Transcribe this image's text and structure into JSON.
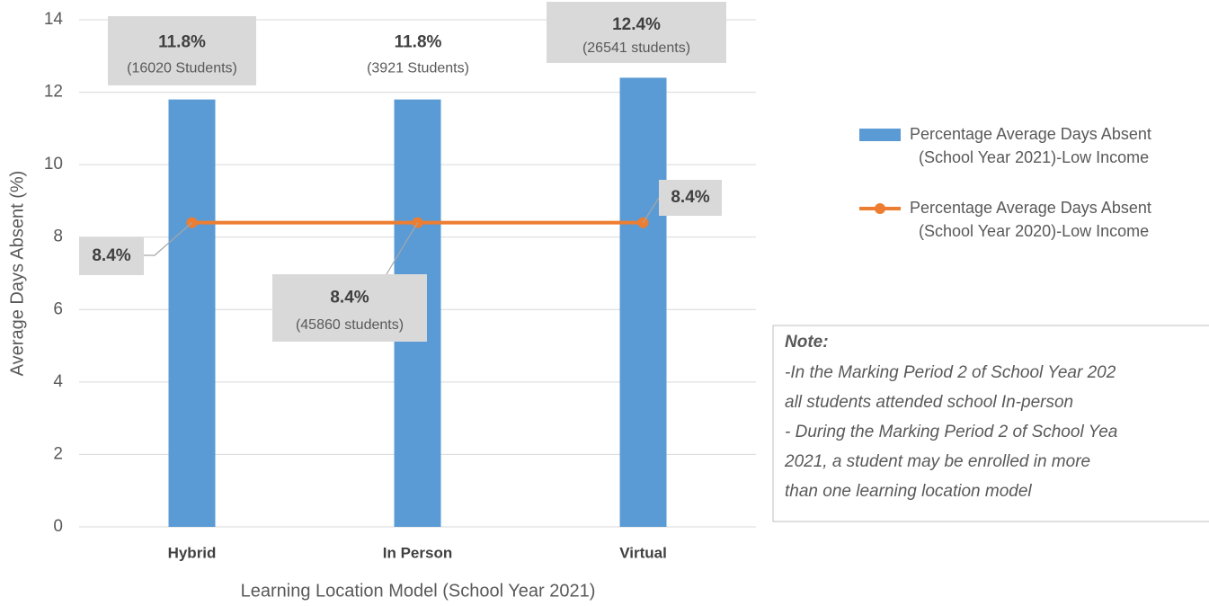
{
  "chart_data": {
    "type": "bar",
    "categories": [
      "Hybrid",
      "In Person",
      "Virtual"
    ],
    "xlabel": "Learning Location Model (School Year 2021)",
    "ylabel": "Average Days Absent (%)",
    "ylim": [
      0,
      14
    ],
    "yticks": [
      0,
      2,
      4,
      6,
      8,
      10,
      12,
      14
    ],
    "grid": true,
    "legend": "right",
    "series": [
      {
        "name": "Percentage Average Days Absent (School Year 2021)-Low Income",
        "type": "bar",
        "color": "#5b9bd5",
        "values": [
          11.8,
          11.8,
          12.4
        ],
        "value_labels": [
          "11.8%",
          "11.8%",
          "12.4%"
        ],
        "label_notes": [
          "(16020 Students)",
          "(3921 Students)",
          "(26541 students)"
        ]
      },
      {
        "name": "Percentage Average Days Absent (School Year 2020)-Low Income",
        "type": "line",
        "color": "#ed7d31",
        "values": [
          8.4,
          8.4,
          8.4
        ],
        "value_labels": [
          "8.4%",
          "8.4%",
          "8.4%"
        ],
        "label_notes": [
          null,
          "(45860  students)",
          null
        ]
      }
    ],
    "note": {
      "title": "Note:",
      "lines": [
        "-In the Marking Period 2 of School Year 202",
        "all students attended school In-person",
        "- During the Marking Period 2 of School Yea",
        "2021, a student may be enrolled in more",
        "than one learning location model"
      ]
    }
  }
}
